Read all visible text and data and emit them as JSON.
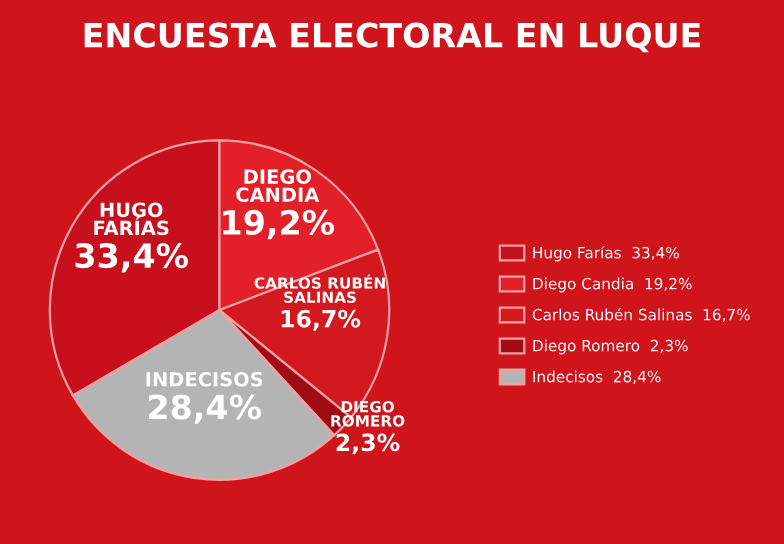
{
  "chart_data": {
    "type": "pie",
    "title": "ENCUESTA ELECTORAL EN LUQUE",
    "categories": [
      "Hugo Farías",
      "Diego Candia",
      "Carlos Rubén Salinas",
      "Diego Romero",
      "Indecisos"
    ],
    "values": [
      33.4,
      19.2,
      16.7,
      2.3,
      28.4
    ],
    "value_labels": [
      "33,4%",
      "19,2%",
      "16,7%",
      "2,3%",
      "28,4%"
    ],
    "colors": [
      "#c70f1d",
      "#e3202a",
      "#d31820",
      "#a00c14",
      "#b4b4b4"
    ],
    "annotations": [
      "HUGO\nFARÍAS",
      "DIEGO\nCANDIA",
      "CARLOS RUBÉN\nSALINAS",
      "DIEGO\nROMERO",
      "INDECISOS"
    ],
    "legend": "right"
  }
}
